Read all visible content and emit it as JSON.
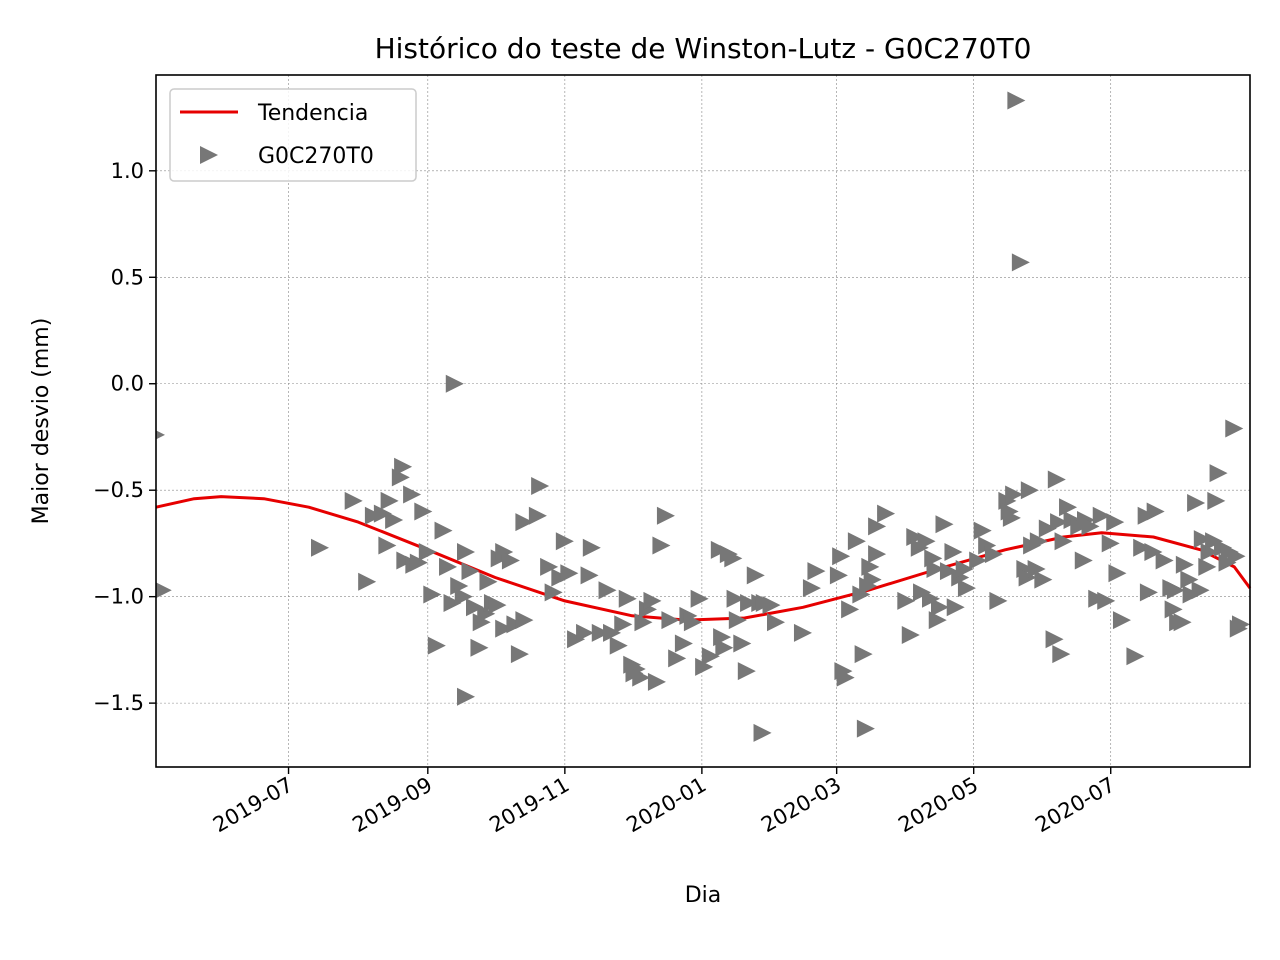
{
  "chart_data": {
    "type": "scatter",
    "title": "Histórico do teste de Winston-Lutz - G0C270T0",
    "xlabel": "Dia",
    "ylabel": "Maior desvio (mm)",
    "x_type": "date",
    "xlim": [
      "2019-05-03",
      "2020-09-01"
    ],
    "ylim": [
      -1.8,
      1.45
    ],
    "x_ticks": [
      "2019-07-01",
      "2019-09-01",
      "2019-11-01",
      "2020-01-01",
      "2020-03-01",
      "2020-05-01",
      "2020-07-01"
    ],
    "x_tick_labels": [
      "2019-07",
      "2019-09",
      "2019-11",
      "2020-01",
      "2020-03",
      "2020-05",
      "2020-07"
    ],
    "y_ticks": [
      -1.5,
      -1.0,
      -0.5,
      0.0,
      0.5,
      1.0
    ],
    "y_tick_labels": [
      "−1.5",
      "−1.0",
      "−0.5",
      "0.0",
      "0.5",
      "1.0"
    ],
    "grid": true,
    "legend_position": "top-left",
    "series": [
      {
        "name": "Tendencia",
        "kind": "line",
        "color": "#e60000",
        "points": [
          [
            "2019-05-03",
            -0.58
          ],
          [
            "2019-05-20",
            -0.54
          ],
          [
            "2019-06-01",
            -0.53
          ],
          [
            "2019-06-20",
            -0.54
          ],
          [
            "2019-07-10",
            -0.58
          ],
          [
            "2019-08-01",
            -0.65
          ],
          [
            "2019-09-01",
            -0.78
          ],
          [
            "2019-10-01",
            -0.91
          ],
          [
            "2019-11-01",
            -1.02
          ],
          [
            "2019-12-01",
            -1.09
          ],
          [
            "2019-12-25",
            -1.11
          ],
          [
            "2020-01-20",
            -1.1
          ],
          [
            "2020-02-15",
            -1.05
          ],
          [
            "2020-03-15",
            -0.97
          ],
          [
            "2020-04-15",
            -0.87
          ],
          [
            "2020-05-15",
            -0.78
          ],
          [
            "2020-06-10",
            -0.72
          ],
          [
            "2020-06-27",
            -0.7
          ],
          [
            "2020-07-20",
            -0.72
          ],
          [
            "2020-08-10",
            -0.78
          ],
          [
            "2020-08-25",
            -0.86
          ],
          [
            "2020-09-01",
            -0.96
          ]
        ]
      },
      {
        "name": "G0C270T0",
        "kind": "scatter",
        "marker": "triangle-right",
        "color": "#777777",
        "points": [
          [
            "2019-05-03",
            -0.24
          ],
          [
            "2019-05-06",
            -0.97
          ],
          [
            "2019-07-15",
            -0.77
          ],
          [
            "2019-07-30",
            -0.55
          ],
          [
            "2019-08-05",
            -0.93
          ],
          [
            "2019-08-08",
            -0.62
          ],
          [
            "2019-08-12",
            -0.61
          ],
          [
            "2019-08-14",
            -0.76
          ],
          [
            "2019-08-15",
            -0.55
          ],
          [
            "2019-08-17",
            -0.64
          ],
          [
            "2019-08-20",
            -0.44
          ],
          [
            "2019-08-21",
            -0.39
          ],
          [
            "2019-08-22",
            -0.83
          ],
          [
            "2019-08-25",
            -0.52
          ],
          [
            "2019-08-26",
            -0.85
          ],
          [
            "2019-08-28",
            -0.84
          ],
          [
            "2019-08-30",
            -0.6
          ],
          [
            "2019-09-01",
            -0.79
          ],
          [
            "2019-09-03",
            -0.99
          ],
          [
            "2019-09-05",
            -1.23
          ],
          [
            "2019-09-08",
            -0.69
          ],
          [
            "2019-09-10",
            -0.86
          ],
          [
            "2019-09-12",
            -1.03
          ],
          [
            "2019-09-13",
            0.0
          ],
          [
            "2019-09-15",
            -0.95
          ],
          [
            "2019-09-17",
            -1.0
          ],
          [
            "2019-09-18",
            -0.79
          ],
          [
            "2019-09-18",
            -1.47
          ],
          [
            "2019-09-20",
            -0.88
          ],
          [
            "2019-09-22",
            -1.05
          ],
          [
            "2019-09-24",
            -1.24
          ],
          [
            "2019-09-25",
            -1.12
          ],
          [
            "2019-09-27",
            -1.08
          ],
          [
            "2019-09-28",
            -0.93
          ],
          [
            "2019-09-30",
            -1.03
          ],
          [
            "2019-10-02",
            -1.04
          ],
          [
            "2019-10-03",
            -0.82
          ],
          [
            "2019-10-05",
            -0.79
          ],
          [
            "2019-10-05",
            -1.15
          ],
          [
            "2019-10-08",
            -0.83
          ],
          [
            "2019-10-10",
            -1.13
          ],
          [
            "2019-10-12",
            -1.27
          ],
          [
            "2019-10-14",
            -0.65
          ],
          [
            "2019-10-14",
            -1.11
          ],
          [
            "2019-10-20",
            -0.62
          ],
          [
            "2019-10-21",
            -0.48
          ],
          [
            "2019-10-25",
            -0.86
          ],
          [
            "2019-10-27",
            -0.98
          ],
          [
            "2019-10-30",
            -0.91
          ],
          [
            "2019-11-01",
            -0.74
          ],
          [
            "2019-11-03",
            -0.89
          ],
          [
            "2019-11-06",
            -1.2
          ],
          [
            "2019-11-10",
            -1.17
          ],
          [
            "2019-11-12",
            -0.9
          ],
          [
            "2019-11-13",
            -0.77
          ],
          [
            "2019-11-17",
            -1.17
          ],
          [
            "2019-11-20",
            -0.97
          ],
          [
            "2019-11-22",
            -1.17
          ],
          [
            "2019-11-25",
            -1.23
          ],
          [
            "2019-11-27",
            -1.13
          ],
          [
            "2019-11-29",
            -1.01
          ],
          [
            "2019-12-01",
            -1.32
          ],
          [
            "2019-12-02",
            -1.36
          ],
          [
            "2019-12-03",
            -1.34
          ],
          [
            "2019-12-05",
            -1.38
          ],
          [
            "2019-12-06",
            -1.12
          ],
          [
            "2019-12-08",
            -1.06
          ],
          [
            "2019-12-10",
            -1.02
          ],
          [
            "2019-12-12",
            -1.4
          ],
          [
            "2019-12-14",
            -0.76
          ],
          [
            "2019-12-16",
            -0.62
          ],
          [
            "2019-12-18",
            -1.11
          ],
          [
            "2019-12-21",
            -1.29
          ],
          [
            "2019-12-24",
            -1.22
          ],
          [
            "2019-12-26",
            -1.09
          ],
          [
            "2019-12-28",
            -1.12
          ],
          [
            "2019-12-31",
            -1.01
          ],
          [
            "2020-01-02",
            -1.33
          ],
          [
            "2020-01-05",
            -1.28
          ],
          [
            "2020-01-09",
            -0.78
          ],
          [
            "2020-01-10",
            -1.19
          ],
          [
            "2020-01-11",
            -1.24
          ],
          [
            "2020-01-13",
            -0.8
          ],
          [
            "2020-01-15",
            -0.82
          ],
          [
            "2020-01-16",
            -1.01
          ],
          [
            "2020-01-17",
            -1.11
          ],
          [
            "2020-01-19",
            -1.22
          ],
          [
            "2020-01-21",
            -1.35
          ],
          [
            "2020-01-22",
            -1.03
          ],
          [
            "2020-01-25",
            -0.9
          ],
          [
            "2020-01-27",
            -1.03
          ],
          [
            "2020-01-28",
            -1.64
          ],
          [
            "2020-01-29",
            -1.03
          ],
          [
            "2020-02-01",
            -1.04
          ],
          [
            "2020-02-03",
            -1.12
          ],
          [
            "2020-02-15",
            -1.17
          ],
          [
            "2020-02-19",
            -0.96
          ],
          [
            "2020-02-21",
            -0.88
          ],
          [
            "2020-03-02",
            -0.9
          ],
          [
            "2020-03-03",
            -0.81
          ],
          [
            "2020-03-04",
            -1.35
          ],
          [
            "2020-03-05",
            -1.38
          ],
          [
            "2020-03-07",
            -1.06
          ],
          [
            "2020-03-10",
            -0.74
          ],
          [
            "2020-03-12",
            -0.99
          ],
          [
            "2020-03-13",
            -1.27
          ],
          [
            "2020-03-14",
            -1.62
          ],
          [
            "2020-03-15",
            -0.95
          ],
          [
            "2020-03-16",
            -0.86
          ],
          [
            "2020-03-17",
            -0.92
          ],
          [
            "2020-03-19",
            -0.67
          ],
          [
            "2020-03-19",
            -0.8
          ],
          [
            "2020-03-23",
            -0.61
          ],
          [
            "2020-04-01",
            -1.02
          ],
          [
            "2020-04-03",
            -1.18
          ],
          [
            "2020-04-05",
            -0.72
          ],
          [
            "2020-04-07",
            -0.77
          ],
          [
            "2020-04-08",
            -0.98
          ],
          [
            "2020-04-10",
            -0.74
          ],
          [
            "2020-04-12",
            -1.01
          ],
          [
            "2020-04-13",
            -0.82
          ],
          [
            "2020-04-14",
            -0.87
          ],
          [
            "2020-04-15",
            -1.11
          ],
          [
            "2020-04-16",
            -1.05
          ],
          [
            "2020-04-18",
            -0.66
          ],
          [
            "2020-04-20",
            -0.88
          ],
          [
            "2020-04-22",
            -0.79
          ],
          [
            "2020-04-23",
            -1.05
          ],
          [
            "2020-04-25",
            -0.91
          ],
          [
            "2020-04-27",
            -0.87
          ],
          [
            "2020-04-28",
            -0.96
          ],
          [
            "2020-05-03",
            -0.83
          ],
          [
            "2020-05-05",
            -0.69
          ],
          [
            "2020-05-07",
            -0.76
          ],
          [
            "2020-05-10",
            -0.8
          ],
          [
            "2020-05-12",
            -1.02
          ],
          [
            "2020-05-16",
            -0.55
          ],
          [
            "2020-05-17",
            -0.6
          ],
          [
            "2020-05-18",
            -0.63
          ],
          [
            "2020-05-19",
            -0.52
          ],
          [
            "2020-05-20",
            1.33
          ],
          [
            "2020-05-22",
            0.57
          ],
          [
            "2020-05-24",
            -0.87
          ],
          [
            "2020-05-25",
            -0.91
          ],
          [
            "2020-05-26",
            -0.5
          ],
          [
            "2020-05-27",
            -0.76
          ],
          [
            "2020-05-29",
            -0.87
          ],
          [
            "2020-05-30",
            -0.74
          ],
          [
            "2020-06-01",
            -0.92
          ],
          [
            "2020-06-03",
            -0.68
          ],
          [
            "2020-06-06",
            -1.2
          ],
          [
            "2020-06-07",
            -0.45
          ],
          [
            "2020-06-08",
            -0.65
          ],
          [
            "2020-06-09",
            -1.27
          ],
          [
            "2020-06-10",
            -0.74
          ],
          [
            "2020-06-12",
            -0.58
          ],
          [
            "2020-06-14",
            -0.64
          ],
          [
            "2020-06-17",
            -0.67
          ],
          [
            "2020-06-19",
            -0.83
          ],
          [
            "2020-06-20",
            -0.64
          ],
          [
            "2020-06-22",
            -0.67
          ],
          [
            "2020-06-25",
            -1.01
          ],
          [
            "2020-06-27",
            -0.62
          ],
          [
            "2020-06-29",
            -1.02
          ],
          [
            "2020-07-01",
            -0.75
          ],
          [
            "2020-07-03",
            -0.65
          ],
          [
            "2020-07-04",
            -0.89
          ],
          [
            "2020-07-06",
            -1.11
          ],
          [
            "2020-07-12",
            -1.28
          ],
          [
            "2020-07-15",
            -0.77
          ],
          [
            "2020-07-17",
            -0.62
          ],
          [
            "2020-07-18",
            -0.98
          ],
          [
            "2020-07-20",
            -0.79
          ],
          [
            "2020-07-21",
            -0.6
          ],
          [
            "2020-07-25",
            -0.83
          ],
          [
            "2020-07-28",
            -0.96
          ],
          [
            "2020-07-29",
            -1.06
          ],
          [
            "2020-07-30",
            -0.97
          ],
          [
            "2020-07-31",
            -1.12
          ],
          [
            "2020-08-02",
            -1.12
          ],
          [
            "2020-08-03",
            -0.85
          ],
          [
            "2020-08-05",
            -0.92
          ],
          [
            "2020-08-06",
            -0.99
          ],
          [
            "2020-08-08",
            -0.56
          ],
          [
            "2020-08-10",
            -0.97
          ],
          [
            "2020-08-11",
            -0.73
          ],
          [
            "2020-08-13",
            -0.86
          ],
          [
            "2020-08-14",
            -0.79
          ],
          [
            "2020-08-16",
            -0.74
          ],
          [
            "2020-08-17",
            -0.55
          ],
          [
            "2020-08-18",
            -0.42
          ],
          [
            "2020-08-20",
            -0.77
          ],
          [
            "2020-08-22",
            -0.84
          ],
          [
            "2020-08-23",
            -0.79
          ],
          [
            "2020-08-25",
            -0.21
          ],
          [
            "2020-08-26",
            -0.81
          ],
          [
            "2020-08-27",
            -1.15
          ],
          [
            "2020-08-28",
            -1.13
          ]
        ]
      }
    ]
  }
}
